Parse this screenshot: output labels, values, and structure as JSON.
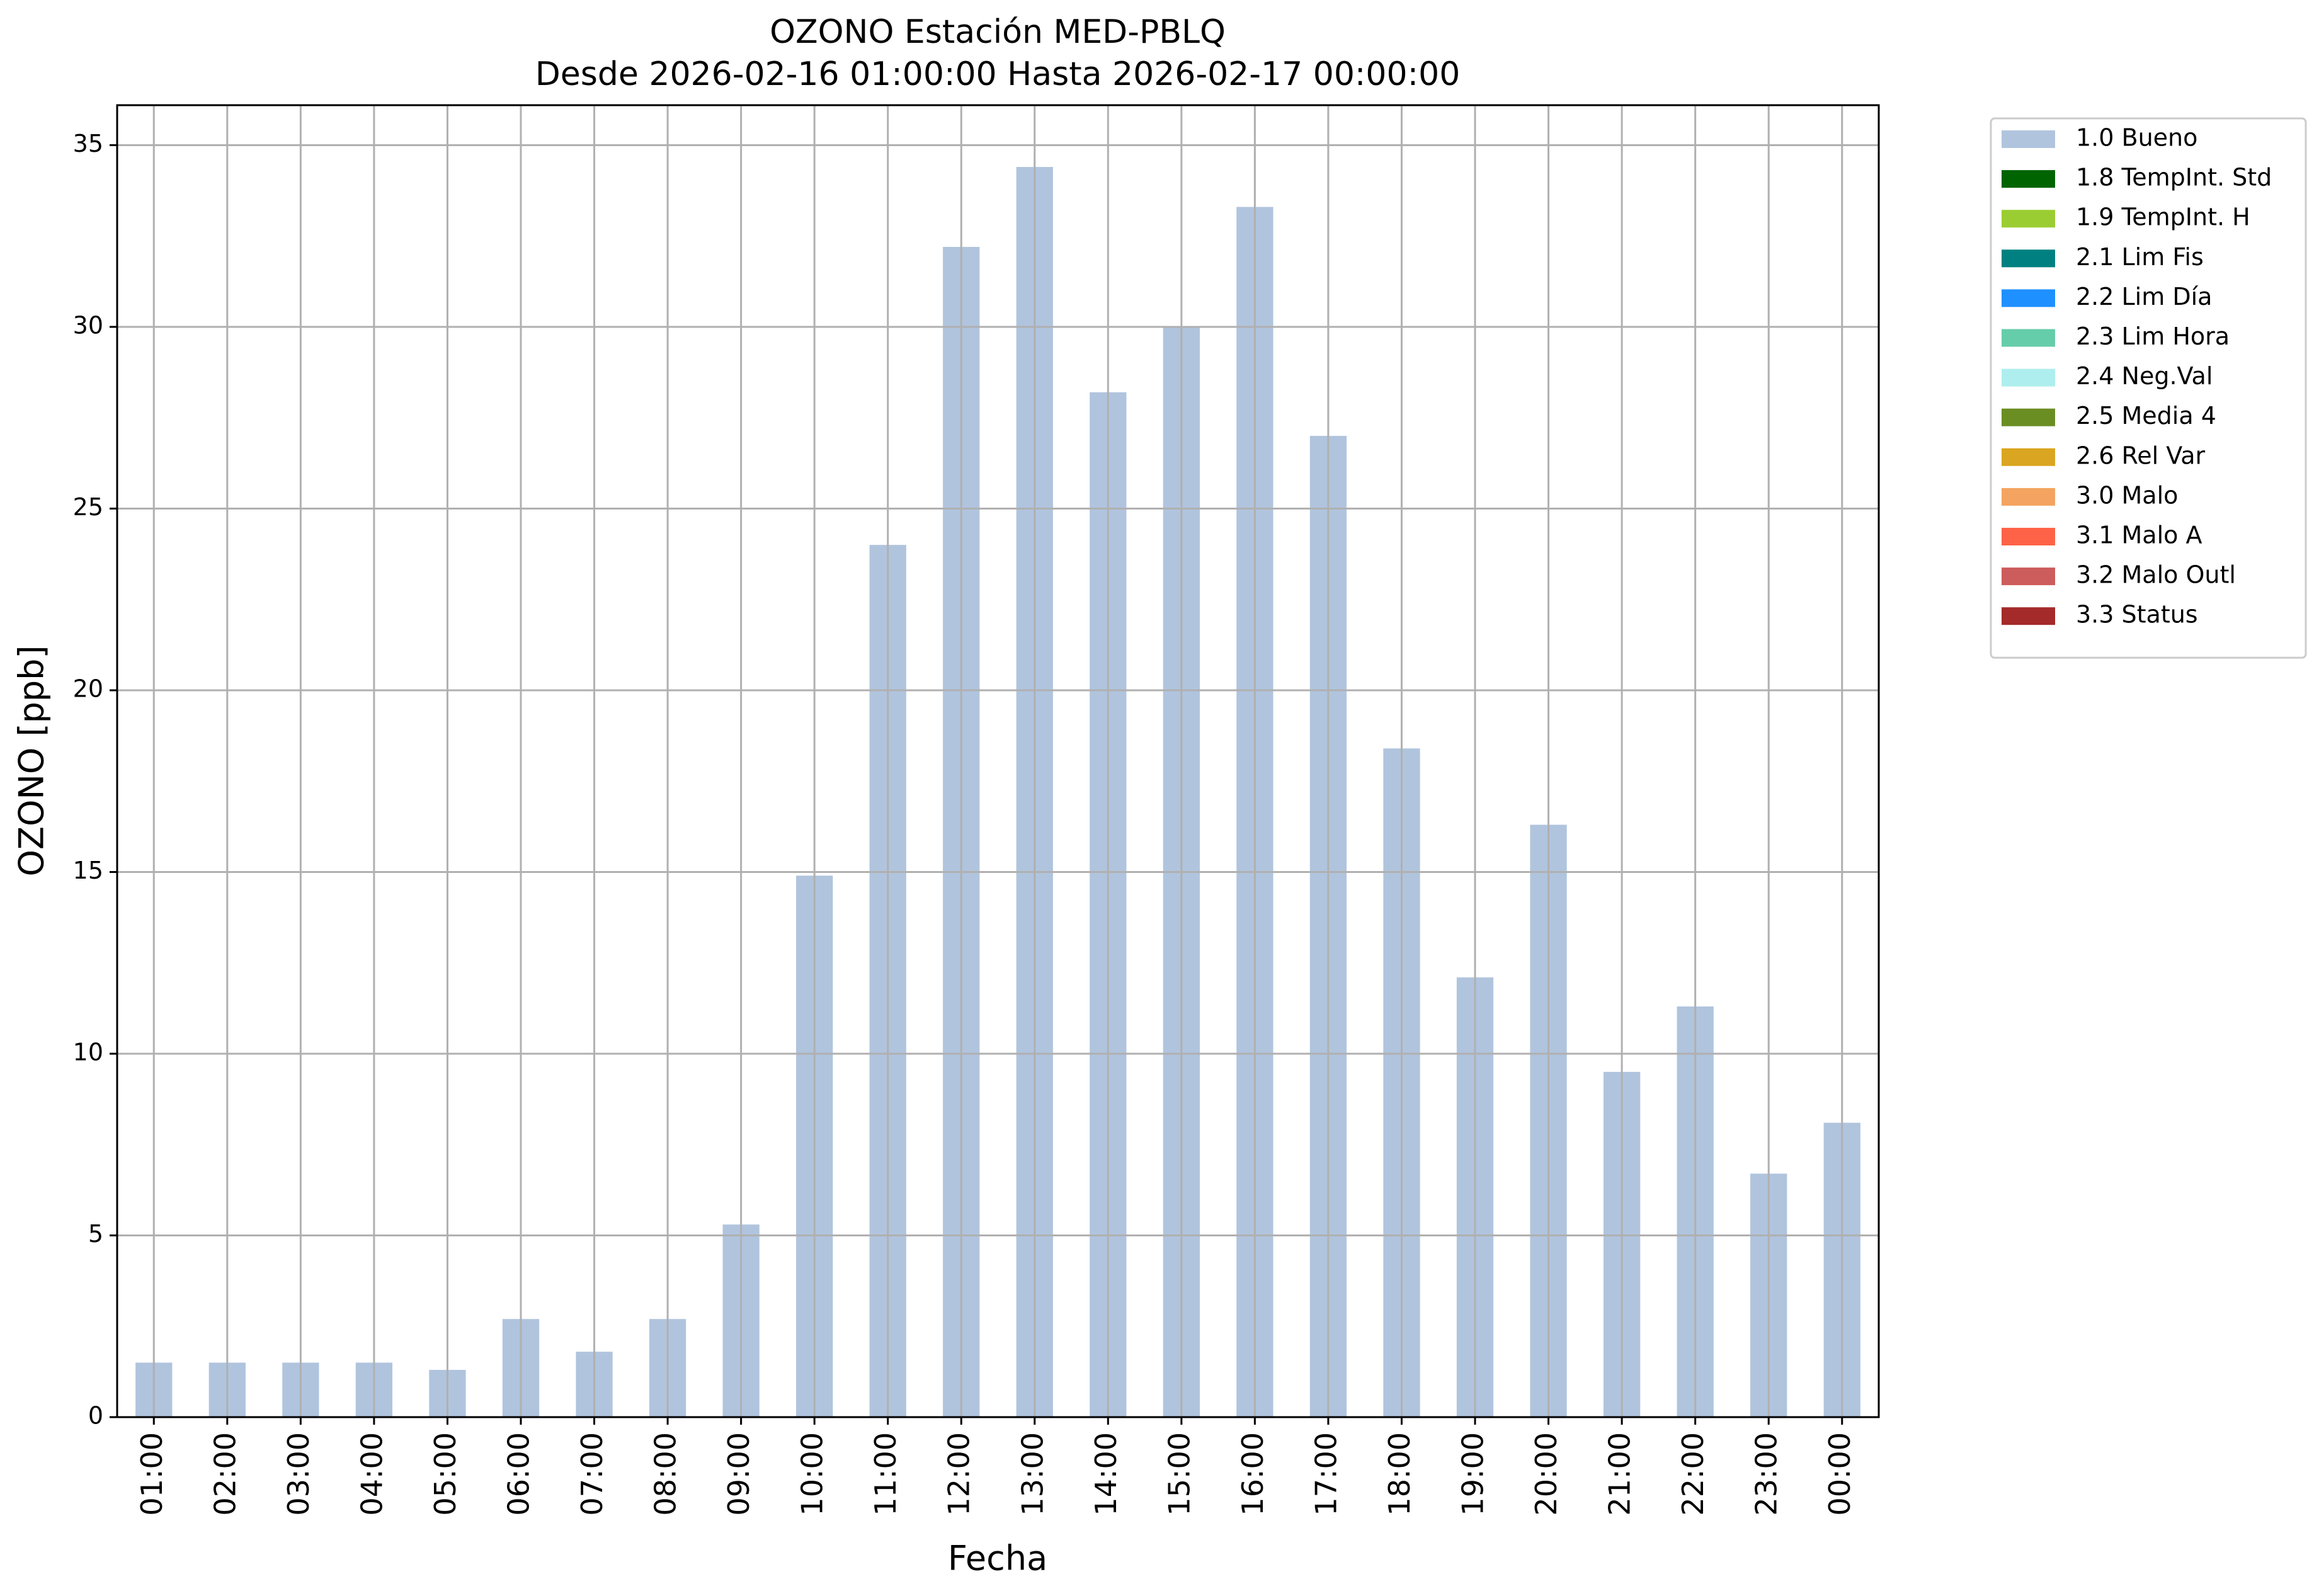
{
  "chart_data": {
    "type": "bar",
    "title": "OZONO Estación MED-PBLQ",
    "subtitle": "Desde 2026-02-16 01:00:00 Hasta 2026-02-17 00:00:00",
    "x_label": "Fecha",
    "y_label": "OZONO [ppb]",
    "categories": [
      "01:00",
      "02:00",
      "03:00",
      "04:00",
      "05:00",
      "06:00",
      "07:00",
      "08:00",
      "09:00",
      "10:00",
      "11:00",
      "12:00",
      "13:00",
      "14:00",
      "15:00",
      "16:00",
      "17:00",
      "18:00",
      "19:00",
      "20:00",
      "21:00",
      "22:00",
      "23:00",
      "00:00"
    ],
    "series": [
      {
        "name": "1.0 Bueno",
        "color": "#b0c4de",
        "values": [
          1.5,
          1.5,
          1.5,
          1.5,
          1.3,
          2.7,
          1.8,
          2.7,
          5.3,
          14.9,
          24.0,
          32.2,
          34.4,
          28.2,
          30.0,
          33.3,
          27.0,
          18.4,
          12.1,
          16.3,
          9.5,
          11.3,
          6.7,
          8.1
        ]
      },
      {
        "name": "1.8 TempInt. Std",
        "color": "#006400"
      },
      {
        "name": "1.9 TempInt. H",
        "color": "#9acd32"
      },
      {
        "name": "2.1 Lim Fis",
        "color": "#008080"
      },
      {
        "name": "2.2 Lim Día",
        "color": "#1e90ff"
      },
      {
        "name": "2.3 Lim Hora",
        "color": "#66cdaa"
      },
      {
        "name": "2.4 Neg.Val",
        "color": "#afeeee"
      },
      {
        "name": "2.5 Media 4",
        "color": "#6b8e23"
      },
      {
        "name": "2.6 Rel Var",
        "color": "#daa520"
      },
      {
        "name": "3.0 Malo",
        "color": "#f4a460"
      },
      {
        "name": "3.1 Malo A",
        "color": "#ff6347"
      },
      {
        "name": "3.2 Malo Outl",
        "color": "#cd5c5c"
      },
      {
        "name": "3.3 Status",
        "color": "#a52a2a"
      }
    ],
    "ylim": [
      0,
      36.1
    ],
    "yticks": [
      0,
      5,
      10,
      15,
      20,
      25,
      30,
      35
    ],
    "grid": true,
    "legend": "outside-upper-right"
  }
}
